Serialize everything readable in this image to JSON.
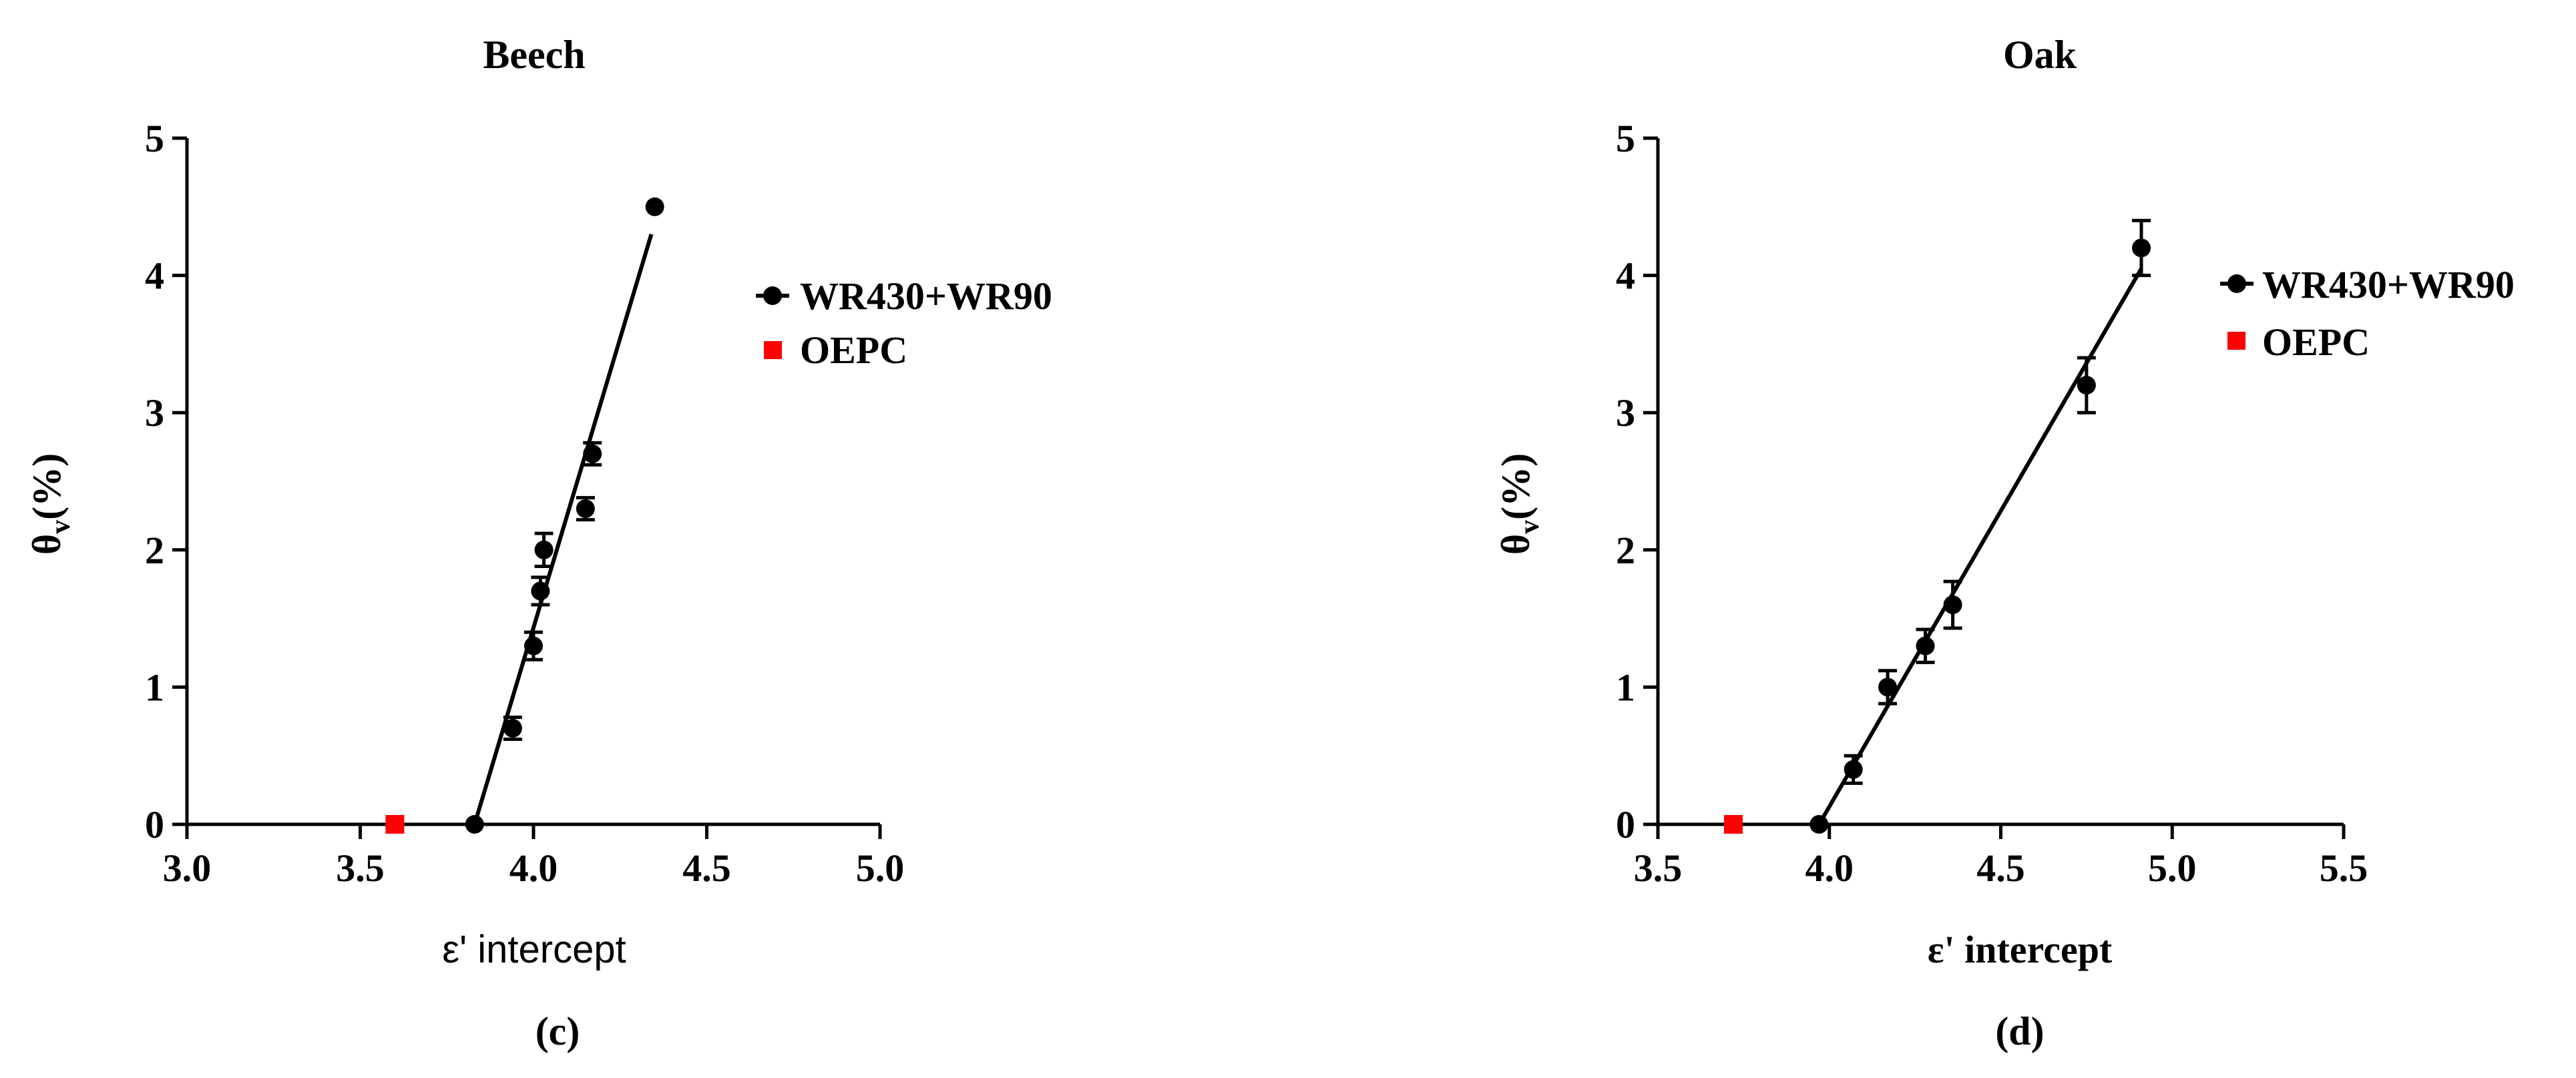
{
  "chart_data": [
    {
      "type": "scatter",
      "title": "Beech",
      "panel_label": "(c)",
      "xlabel": "ε' intercept",
      "ylabel": "θv(%)",
      "ylabel_main": "θ",
      "ylabel_sub": "v",
      "ylabel_unit": "(%)",
      "xlim": [
        3.0,
        5.0
      ],
      "ylim": [
        0,
        5
      ],
      "xticks": [
        3.0,
        3.5,
        4.0,
        4.5,
        5.0
      ],
      "xtick_labels": [
        "3.0",
        "3.5",
        "4.0",
        "4.5",
        "5.0"
      ],
      "yticks": [
        0,
        1,
        2,
        3,
        4,
        5
      ],
      "ytick_labels": [
        "0",
        "1",
        "2",
        "3",
        "4",
        "5"
      ],
      "grid": false,
      "legend_position": "right",
      "series": [
        {
          "name": "WR430+WR90",
          "marker": "circle",
          "color": "#000000",
          "points": [
            {
              "x": 3.83,
              "y": 0.0,
              "err": 0.0
            },
            {
              "x": 3.94,
              "y": 0.7,
              "err": 0.08
            },
            {
              "x": 4.0,
              "y": 1.3,
              "err": 0.1
            },
            {
              "x": 4.02,
              "y": 1.7,
              "err": 0.1
            },
            {
              "x": 4.03,
              "y": 2.0,
              "err": 0.12
            },
            {
              "x": 4.15,
              "y": 2.3,
              "err": 0.08
            },
            {
              "x": 4.17,
              "y": 2.7,
              "err": 0.08
            },
            {
              "x": 4.35,
              "y": 4.5,
              "err": 0.0
            }
          ],
          "fit_line": {
            "x": [
              3.83,
              4.34
            ],
            "y": [
              0.0,
              4.3
            ]
          }
        },
        {
          "name": "OEPC",
          "marker": "square",
          "color": "#ff0000",
          "points": [
            {
              "x": 3.6,
              "y": 0.0
            }
          ]
        }
      ]
    },
    {
      "type": "scatter",
      "title": "Oak",
      "panel_label": "(d)",
      "xlabel": "ε' intercept",
      "ylabel": "θv(%)",
      "ylabel_main": "θ",
      "ylabel_sub": "v",
      "ylabel_unit": "(%)",
      "xlim": [
        3.5,
        5.5
      ],
      "ylim": [
        0,
        5
      ],
      "xticks": [
        3.5,
        4.0,
        4.5,
        5.0,
        5.5
      ],
      "xtick_labels": [
        "3.5",
        "4.0",
        "4.5",
        "5.0",
        "5.5"
      ],
      "yticks": [
        0,
        1,
        2,
        3,
        4,
        5
      ],
      "ytick_labels": [
        "0",
        "1",
        "2",
        "3",
        "4",
        "5"
      ],
      "grid": false,
      "legend_position": "right",
      "series": [
        {
          "name": "WR430+WR90",
          "marker": "circle",
          "color": "#000000",
          "points": [
            {
              "x": 3.97,
              "y": 0.0,
              "err": 0.0
            },
            {
              "x": 4.07,
              "y": 0.4,
              "err": 0.1
            },
            {
              "x": 4.17,
              "y": 1.0,
              "err": 0.12
            },
            {
              "x": 4.28,
              "y": 1.3,
              "err": 0.12
            },
            {
              "x": 4.36,
              "y": 1.6,
              "err": 0.17
            },
            {
              "x": 4.75,
              "y": 3.2,
              "err": 0.2
            },
            {
              "x": 4.91,
              "y": 4.2,
              "err": 0.2
            }
          ],
          "fit_line": {
            "x": [
              3.97,
              4.91
            ],
            "y": [
              0.0,
              4.05
            ]
          }
        },
        {
          "name": "OEPC",
          "marker": "square",
          "color": "#ff0000",
          "points": [
            {
              "x": 3.72,
              "y": 0.0
            }
          ]
        }
      ]
    }
  ]
}
